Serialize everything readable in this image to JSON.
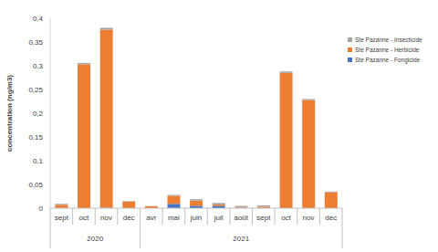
{
  "chart_data": {
    "type": "bar",
    "y_label": "concentration (ng/m3)",
    "categories": [
      "sept",
      "oct",
      "nov",
      "déc",
      "avr",
      "mai",
      "juin",
      "juil",
      "août",
      "sept",
      "oct",
      "nov",
      "déc"
    ],
    "groups": [
      {
        "label": "2020",
        "start": 0,
        "end": 3
      },
      {
        "label": "2021",
        "start": 4,
        "end": 12
      }
    ],
    "series": [
      {
        "name": "Ste Pazanne - Fongicide",
        "color": "#4472c4",
        "values": [
          0,
          0,
          0.001,
          0,
          0,
          0.009,
          0.005,
          0.005,
          0.001,
          0,
          0,
          0,
          0
        ]
      },
      {
        "name": "Ste Pazanne - Herbicide",
        "color": "#ed7d31",
        "values": [
          0.007,
          0.303,
          0.375,
          0.014,
          0.004,
          0.017,
          0.011,
          0.003,
          0.002,
          0.003,
          0.285,
          0.228,
          0.033
        ]
      },
      {
        "name": "Ste Pazanne - Insecticide",
        "color": "#a5a5a5",
        "values": [
          0.002,
          0.003,
          0.004,
          0.001,
          0.0005,
          0.002,
          0.003,
          0.003,
          0.002,
          0.003,
          0.003,
          0.002,
          0.002
        ]
      }
    ],
    "ylim": [
      0,
      0.4
    ],
    "yticks": [
      0,
      {
        "value": 0.05,
        "label": "0,05"
      },
      {
        "value": 0.1,
        "label": "0,1"
      },
      {
        "value": 0.15,
        "label": "0,15"
      },
      {
        "value": 0.2,
        "label": "0,2"
      },
      {
        "value": 0.25,
        "label": "0,25"
      },
      {
        "value": 0.3,
        "label": "0,3"
      },
      {
        "value": 0.35,
        "label": "0,35"
      },
      {
        "value": 0.4,
        "label": "0,4"
      }
    ],
    "stacked": true,
    "grid": false,
    "legend": "right"
  }
}
